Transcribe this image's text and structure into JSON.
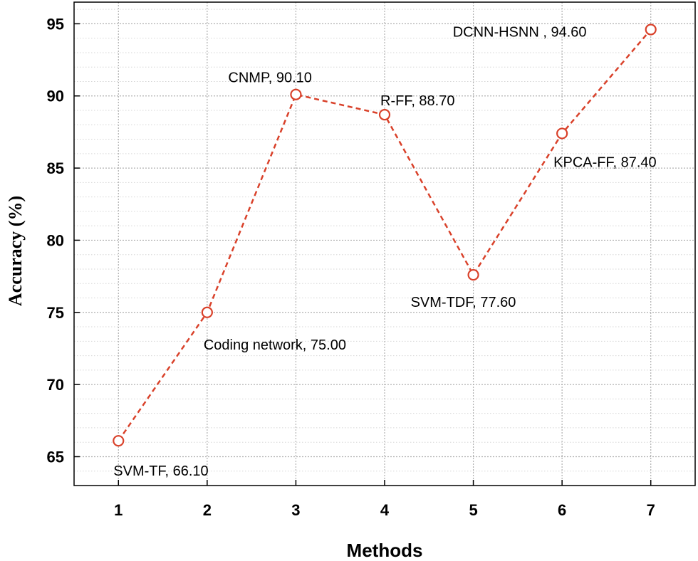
{
  "chart_data": {
    "type": "line",
    "title": "",
    "xlabel": "Methods",
    "ylabel": "Accuracy (%)",
    "x": [
      1,
      2,
      3,
      4,
      5,
      6,
      7
    ],
    "xlim": [
      0.5,
      7.5
    ],
    "ylim": [
      63,
      96.5
    ],
    "xticks": [
      1,
      2,
      3,
      4,
      5,
      6,
      7
    ],
    "yticks": [
      65,
      70,
      75,
      80,
      85,
      90,
      95
    ],
    "grid": true,
    "series": [
      {
        "name": "Accuracy",
        "color": "#d9412a",
        "line_style": "dashed",
        "marker": "circle",
        "values": [
          66.1,
          75.0,
          90.1,
          88.7,
          77.6,
          87.4,
          94.6
        ],
        "labels": [
          "SVM-TF, 66.10",
          "Coding network, 75.00",
          "CNMP, 90.10",
          "R-FF, 88.70",
          "SVM-TDF, 77.60",
          "KPCA-FF, 87.40",
          "DCNN-HSNN , 94.60"
        ]
      }
    ]
  }
}
